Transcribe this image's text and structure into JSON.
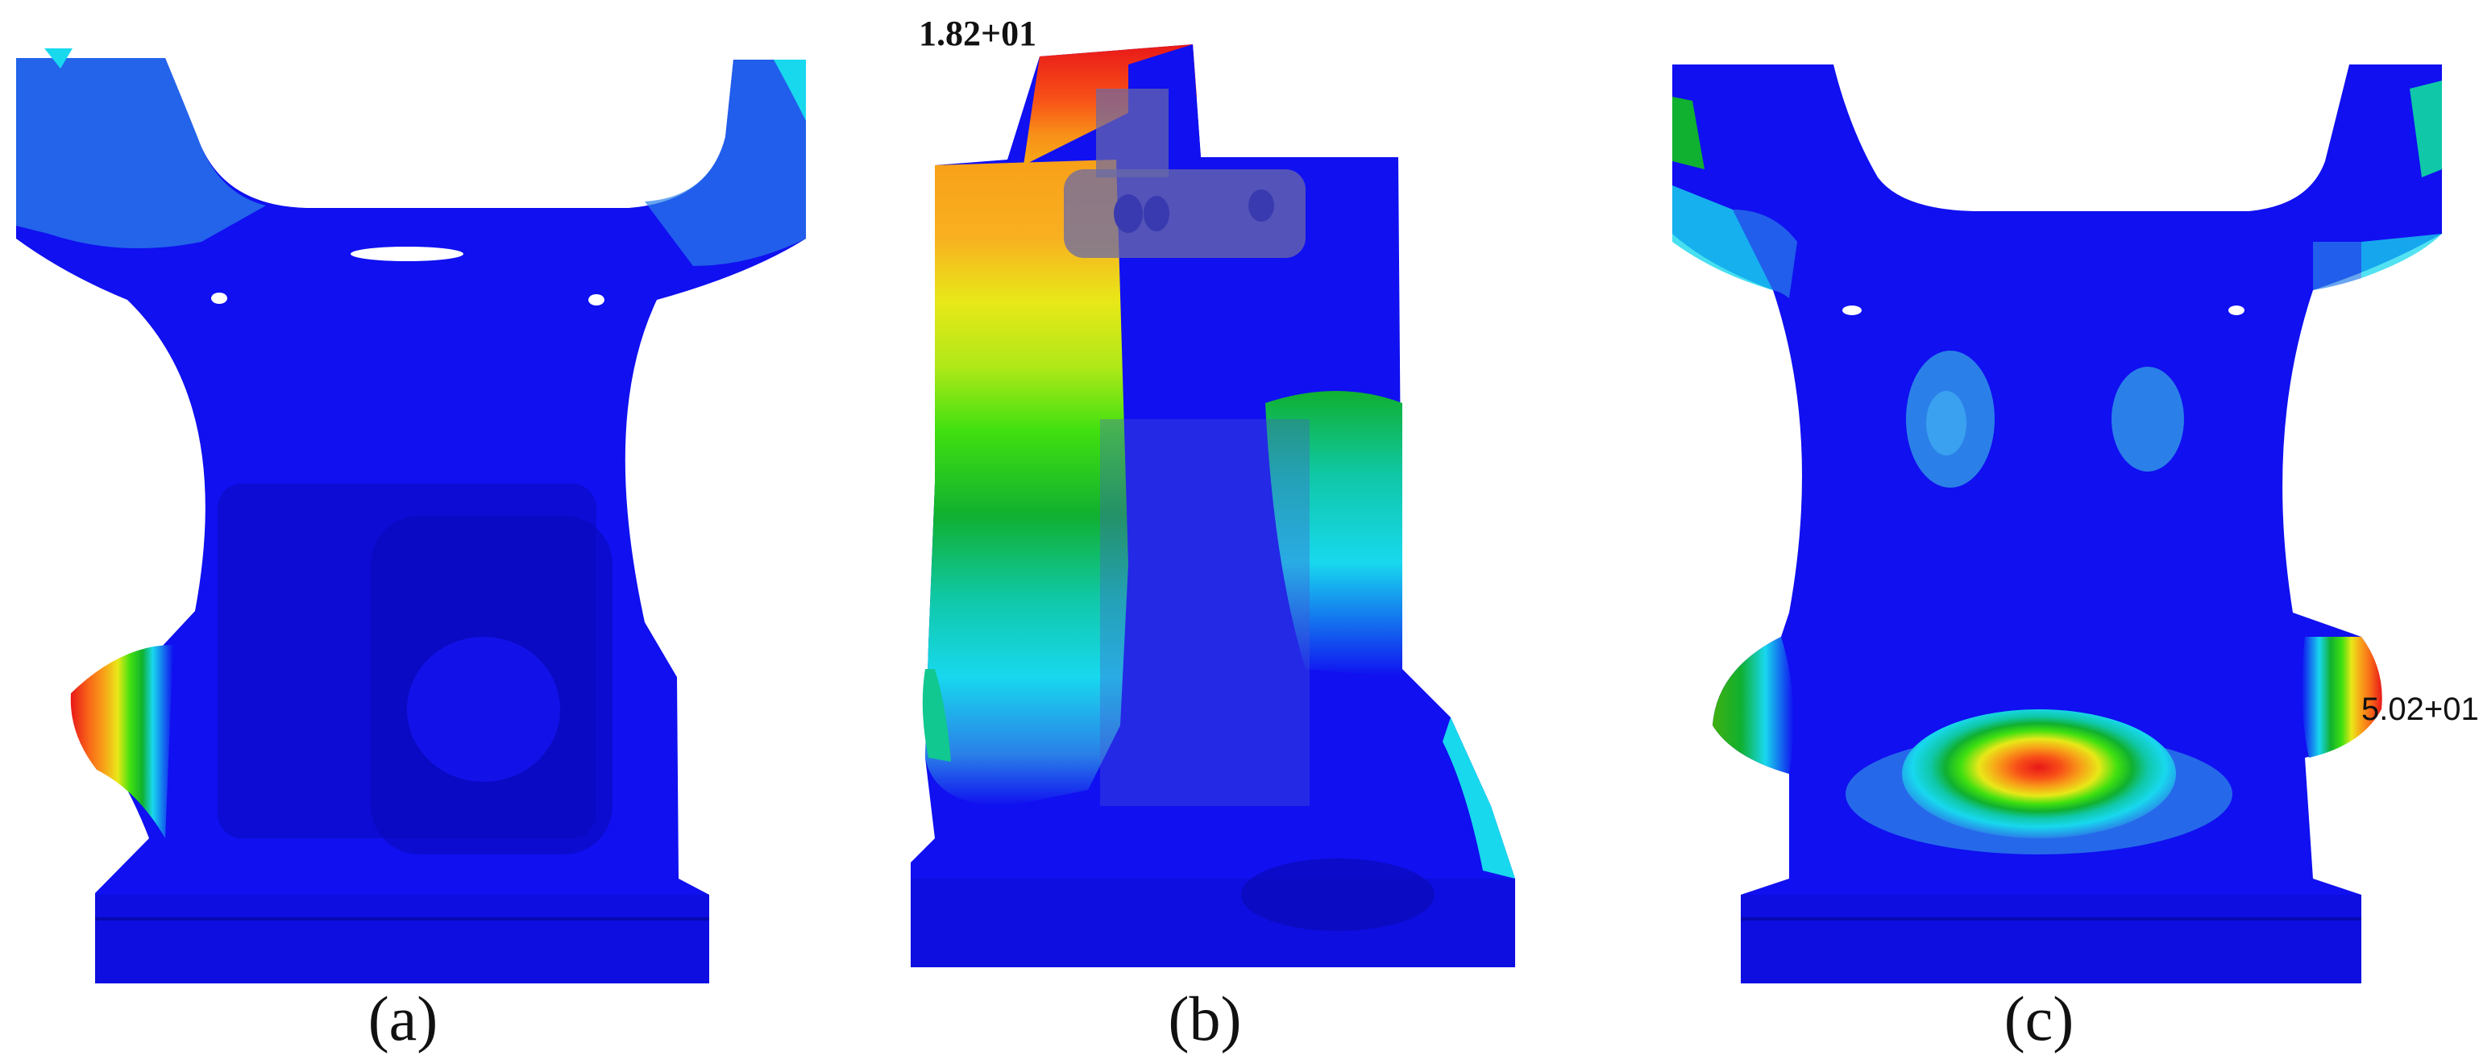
{
  "figure": {
    "panels": [
      {
        "id": "a",
        "caption": "(a)"
      },
      {
        "id": "b",
        "caption": "(b)",
        "max_label": "1.82+01"
      },
      {
        "id": "c",
        "caption": "(c)",
        "max_label": "5.02+01"
      }
    ],
    "colors": {
      "base_blue": "#1010f0",
      "dark_blue": "#0c0cd0",
      "light_blue": "#2a80e8",
      "cyan": "#18d8ee",
      "aqua": "#10c8a8",
      "green": "#10b030",
      "bright_green": "#40e010",
      "yellow": "#e8e818",
      "orange": "#f8a018",
      "dark_orange": "#f86818",
      "red": "#e81818"
    }
  }
}
